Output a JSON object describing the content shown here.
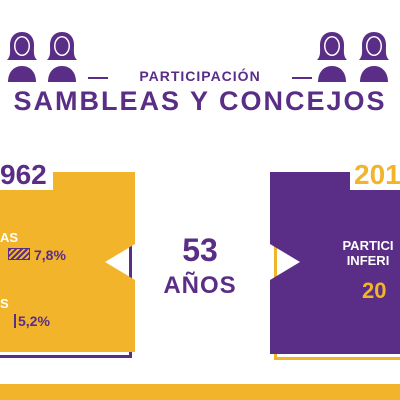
{
  "colors": {
    "purple": "#5a2d86",
    "gold": "#f2b42a",
    "white": "#ffffff"
  },
  "header": {
    "icon": "woman-icon",
    "kicker": "PARTICIPACIÓN",
    "title": "SAMBLEAS Y CONCEJOS"
  },
  "left_panel": {
    "year": "962",
    "stats": [
      {
        "label": "AS",
        "value": "7,8%"
      },
      {
        "label": "S",
        "value": "5,2%"
      }
    ]
  },
  "middle": {
    "number": "53",
    "unit": "AÑOS"
  },
  "right_panel": {
    "year": "201",
    "caption_line1": "PARTICI",
    "caption_line2": "INFERI",
    "value": "20"
  }
}
